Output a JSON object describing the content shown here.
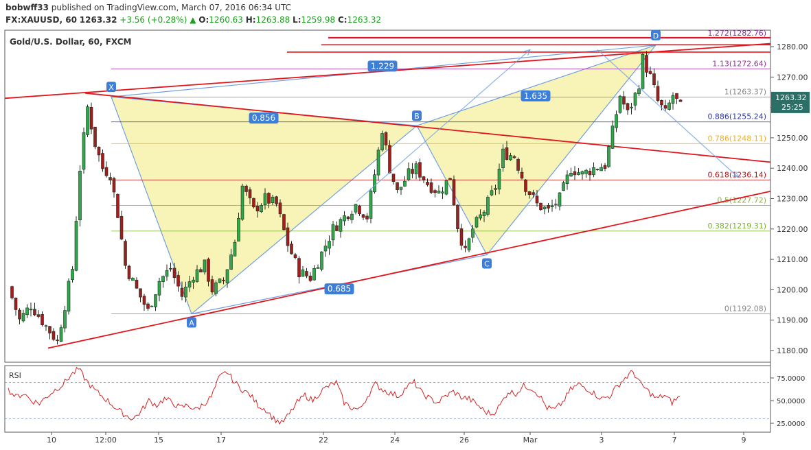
{
  "header": {
    "author": "bobwff33",
    "published_text": "published on TradingView.com, March 07, 2016 06:34 UTC",
    "symbol": "FX:XAUUSD, 60",
    "last": "1263.32",
    "change": "+3.56 (+0.28%)",
    "change_arrow": "▲",
    "open_label": "O:",
    "open": "1260.63",
    "high_label": "H:",
    "high": "1263.88",
    "low_label": "L:",
    "low": "1259.98",
    "close_label": "C:",
    "close": "1263.32"
  },
  "chart_title": "Gold/U.S. Dollar, 60, FXCM",
  "colors": {
    "up": "#2ea84a",
    "down": "#a01e1e",
    "pattern_fill": "#f5f0a0",
    "pattern_line": "#6f9fe0",
    "trendline": "#e0161c",
    "fib_line": "#2f3ba0",
    "rsi_line": "#d22525",
    "label_bg": "#3d7ed8"
  },
  "chart_data": [
    {
      "type": "candlestick",
      "timeframe": "60",
      "y_axis": {
        "ylim": [
          1175,
          1285
        ],
        "ticks": [
          "1180.00",
          "1190.00",
          "1200.00",
          "1210.00",
          "1220.00",
          "1230.00",
          "1240.00",
          "1250.00",
          "1260.00",
          "1270.00",
          "1280.00"
        ]
      },
      "x_axis": {
        "ticks": [
          "10",
          "12:00",
          "15",
          "17",
          "22",
          "24",
          "26",
          "Mar",
          "3",
          "7",
          "9"
        ]
      },
      "price_labels": {
        "last": "1263.32",
        "countdown": "25:25"
      },
      "path_points": [
        [
          0,
          1201
        ],
        [
          3,
          1190
        ],
        [
          6,
          1195
        ],
        [
          10,
          1188
        ],
        [
          13,
          1183
        ],
        [
          15,
          1195
        ],
        [
          17,
          1207
        ],
        [
          19,
          1240
        ],
        [
          21,
          1260
        ],
        [
          23,
          1248
        ],
        [
          25,
          1240
        ],
        [
          27,
          1238
        ],
        [
          29,
          1225
        ],
        [
          31,
          1208
        ],
        [
          34,
          1200
        ],
        [
          37,
          1193
        ],
        [
          40,
          1203
        ],
        [
          43,
          1207
        ],
        [
          46,
          1198
        ],
        [
          49,
          1205
        ],
        [
          52,
          1208
        ],
        [
          54,
          1200
        ],
        [
          57,
          1203
        ],
        [
          60,
          1216
        ],
        [
          62,
          1234
        ],
        [
          65,
          1226
        ],
        [
          68,
          1230
        ],
        [
          71,
          1228
        ],
        [
          74,
          1215
        ],
        [
          77,
          1206
        ],
        [
          80,
          1204
        ],
        [
          83,
          1212
        ],
        [
          86,
          1220
        ],
        [
          89,
          1224
        ],
        [
          92,
          1228
        ],
        [
          95,
          1224
        ],
        [
          97,
          1238
        ],
        [
          99,
          1253
        ],
        [
          101,
          1240
        ],
        [
          103,
          1232
        ],
        [
          106,
          1238
        ],
        [
          108,
          1240
        ],
        [
          111,
          1235
        ],
        [
          114,
          1232
        ],
        [
          117,
          1237
        ],
        [
          119,
          1221
        ],
        [
          121,
          1212
        ],
        [
          123,
          1220
        ],
        [
          126,
          1226
        ],
        [
          129,
          1234
        ],
        [
          131,
          1245
        ],
        [
          134,
          1244
        ],
        [
          137,
          1234
        ],
        [
          140,
          1228
        ],
        [
          143,
          1226
        ],
        [
          146,
          1230
        ],
        [
          149,
          1240
        ],
        [
          152,
          1238
        ],
        [
          155,
          1240
        ],
        [
          158,
          1241
        ],
        [
          160,
          1252
        ],
        [
          162,
          1264
        ],
        [
          164,
          1258
        ],
        [
          166,
          1264
        ],
        [
          167,
          1268
        ],
        [
          168,
          1276
        ],
        [
          170,
          1270
        ],
        [
          172,
          1262
        ],
        [
          174,
          1258
        ],
        [
          176,
          1264
        ],
        [
          178,
          1260
        ]
      ],
      "pattern": {
        "name": "XABCD",
        "points": {
          "X": 1263.5,
          "A": 1192.08,
          "B": 1254.0,
          "C": 1211.5,
          "D": 1280.5
        },
        "ratios": [
          "0.856",
          "0.685",
          "1.229",
          "1.635"
        ]
      },
      "fibonacci": [
        {
          "level": "1.272",
          "price": "1282.76",
          "label": "1.272(1282.76)",
          "color": "#8a2a9a"
        },
        {
          "level": "1.13",
          "price": "1272.64",
          "label": "1.13(1272.64)",
          "color": "#a02aa0"
        },
        {
          "level": "1",
          "price": "1263.37",
          "label": "1(1263.37)",
          "color": "#888888"
        },
        {
          "level": "0.886",
          "price": "1255.24",
          "label": "0.886(1255.24)",
          "color": "#2f3ba0"
        },
        {
          "level": "0.786",
          "price": "1248.11",
          "label": "0.786(1248.11)",
          "color": "#e8b030"
        },
        {
          "level": "0.618",
          "price": "1236.14",
          "label": "0.618(1236.14)",
          "color": "#c01010"
        },
        {
          "level": "0.5",
          "price": "1227.72",
          "label": "0.5(1227.72)",
          "color": "#88b050"
        },
        {
          "level": "0.382",
          "price": "1219.31",
          "label": "0.382(1219.31)",
          "color": "#78b030"
        },
        {
          "level": "0",
          "price": "1192.08",
          "label": "0(1192.08)",
          "color": "#888888"
        }
      ]
    },
    {
      "type": "line",
      "name": "RSI",
      "ylim": [
        18,
        85
      ],
      "ticks": [
        "75.0000",
        "50.0000",
        "25.0000"
      ],
      "levels": [
        70,
        30
      ],
      "values": [
        62,
        54,
        58,
        50,
        47,
        55,
        62,
        68,
        78,
        85,
        72,
        62,
        55,
        48,
        40,
        34,
        30,
        38,
        50,
        45,
        52,
        48,
        42,
        45,
        40,
        46,
        54,
        75,
        82,
        70,
        62,
        56,
        45,
        40,
        30,
        25,
        35,
        48,
        56,
        50,
        60,
        66,
        70,
        48,
        42,
        40,
        55,
        68,
        62,
        58,
        55,
        65,
        70,
        58,
        52,
        48,
        55,
        60,
        54,
        52,
        46,
        38,
        35,
        45,
        60,
        58,
        66,
        64,
        56,
        42,
        40,
        48,
        62,
        68,
        64,
        58,
        52,
        55,
        66,
        75,
        82,
        68,
        60,
        52,
        56,
        48,
        55
      ]
    }
  ]
}
